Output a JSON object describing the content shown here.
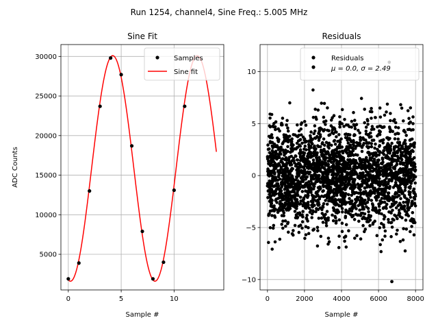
{
  "figure": {
    "suptitle": "Run 1254, channel4, Sine Freq.: 5.005 MHz"
  },
  "chart_data": [
    {
      "type": "line",
      "title": "Sine Fit",
      "xlabel": "Sample #",
      "ylabel": "ADC Counts",
      "xlim": [
        -0.7,
        14.7
      ],
      "ylim": [
        500,
        31500
      ],
      "xticks": [
        0,
        5,
        10
      ],
      "yticks": [
        5000,
        10000,
        15000,
        20000,
        25000,
        30000
      ],
      "grid": true,
      "legend_position": "top-right",
      "series": [
        {
          "name": "Samples",
          "kind": "scatter",
          "color": "#000000",
          "x": [
            0,
            1,
            2,
            3,
            4,
            5,
            6,
            7,
            8,
            9,
            10,
            11
          ],
          "y": [
            1900,
            3900,
            13000,
            23700,
            29800,
            27700,
            18700,
            7900,
            1900,
            4000,
            13100,
            23700
          ]
        },
        {
          "name": "Sine fit",
          "kind": "line",
          "color": "#ff0000",
          "function": {
            "offset": 15850,
            "amplitude": 14250,
            "period": 7.992,
            "phase_x": 2.2,
            "x_range": [
              0,
              14
            ]
          }
        }
      ]
    },
    {
      "type": "scatter",
      "title": "Residuals",
      "xlabel": "Sample #",
      "ylabel": "",
      "xlim": [
        -400,
        8400
      ],
      "ylim": [
        -11,
        12.6
      ],
      "xticks": [
        0,
        2000,
        4000,
        6000,
        8000
      ],
      "yticks": [
        -10,
        -5,
        0,
        5,
        10
      ],
      "grid": true,
      "legend_position": "top-right",
      "series": [
        {
          "name": "Residuals",
          "color": "#000000",
          "summary": {
            "n_points": 8000,
            "mean": 0.0,
            "std": 2.49,
            "min": -10.2,
            "max": 10.9
          },
          "legend_text": "μ = 0.0, σ = 2.49"
        }
      ]
    }
  ]
}
